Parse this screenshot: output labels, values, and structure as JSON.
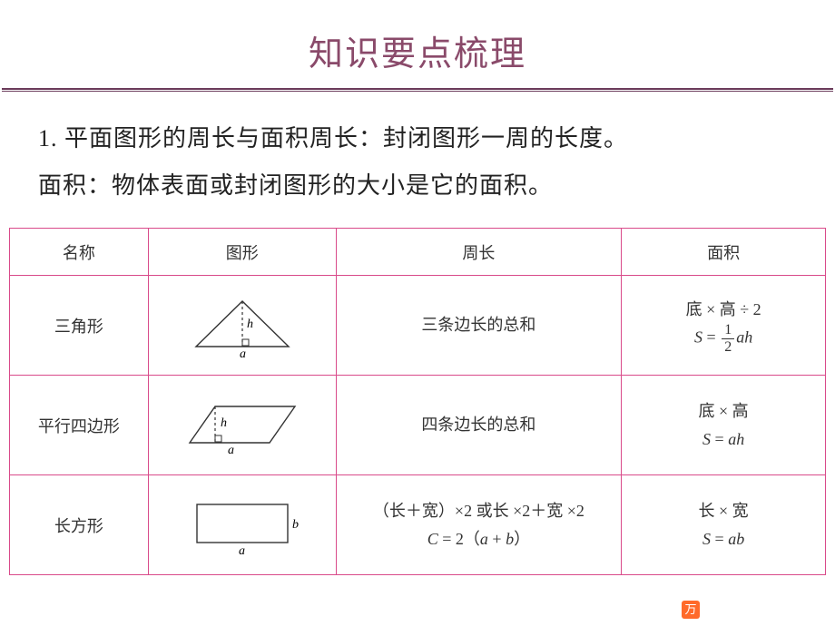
{
  "colors": {
    "title": "#8a4a6a",
    "rule": "#6a3a5a",
    "table_border": "#d94a8a",
    "badge_bg": "#ff6a2a",
    "badge_fg": "#ffffff",
    "shape_stroke": "#333333"
  },
  "slide": {
    "title": "知识要点梳理",
    "body1": "1. 平面图形的周长与面积周长：封闭图形一周的长度。",
    "body2": "面积：物体表面或封闭图形的大小是它的面积。"
  },
  "table": {
    "headers": {
      "name": "名称",
      "shape": "图形",
      "perimeter": "周长",
      "area": "面积"
    },
    "rows": [
      {
        "name": "三角形",
        "perimeter_html": "三条边长的总和",
        "area_html": "底 × 高 ÷ 2<br><span class='math-i'>S</span> = <span class='frac'><span class='num'>1</span><span class='den'>2</span></span><span class='math-i'>ah</span>",
        "shape_svg": "<svg class='shape-svg' width='130' height='70' viewBox='0 0 130 70'><polygon points='65,8 14,58 116,58' fill='none' stroke='#333' stroke-width='1.4'/><line x1='65' y1='8' x2='65' y2='58' stroke='#333' stroke-width='1.2' stroke-dasharray='3 3'/><rect x='65' y='50' width='7' height='7' fill='none' stroke='#333' stroke-width='1'/><text x='70' y='37' font-size='14' font-style='italic' font-family=\"Times New Roman\">h</text><text x='62' y='70' font-size='14' font-style='italic' font-family=\"Times New Roman\">a</text></svg>"
      },
      {
        "name": "平行四边形",
        "perimeter_html": "四条边长的总和",
        "area_html": "底 × 高<br><span class='math-i'>S</span> = <span class='math-i'>ah</span>",
        "shape_svg": "<svg class='shape-svg' width='140' height='65' viewBox='0 0 140 65'><polygon points='40,12 128,12 100,52 12,52' fill='none' stroke='#333' stroke-width='1.4'/><line x1='40' y1='12' x2='40' y2='52' stroke='#333' stroke-width='1.2' stroke-dasharray='3 3'/><rect x='40' y='44' width='7' height='7' fill='none' stroke='#333' stroke-width='1'/><text x='46' y='34' font-size='14' font-style='italic' font-family=\"Times New Roman\">h</text><text x='54' y='64' font-size='14' font-style='italic' font-family=\"Times New Roman\">a</text></svg>"
      },
      {
        "name": "长方形",
        "perimeter_html": "（长＋宽）×2 或长 ×2＋宽 ×2<br><span class='math-i'>C</span> = 2（<span class='math-i'>a</span> + <span class='math-i'>b</span>）",
        "area_html": "长 × 宽<br><span class='math-i'>S</span> = <span class='math-i'>ab</span>",
        "shape_svg": "<svg class='shape-svg' width='140' height='70' viewBox='0 0 140 70'><rect x='20' y='12' width='100' height='42' fill='none' stroke='#333' stroke-width='1.4'/><text x='125' y='38' font-size='14' font-style='italic' font-family=\"Times New Roman\">b</text><text x='66' y='67' font-size='14' font-style='italic' font-family=\"Times New Roman\">a</text></svg>"
      }
    ]
  },
  "badge": {
    "glyph": "万"
  }
}
